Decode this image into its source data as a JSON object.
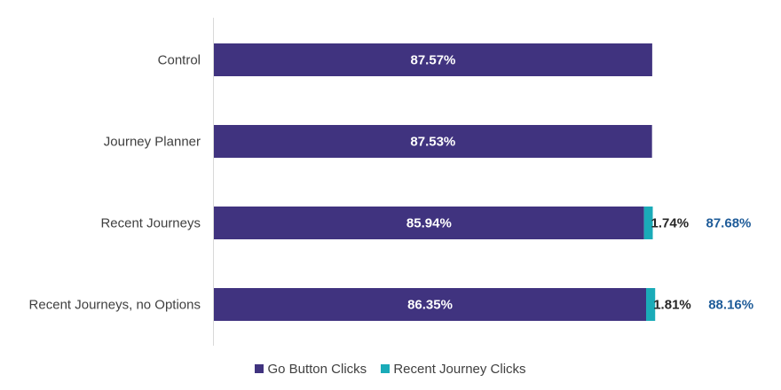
{
  "chart_data": {
    "type": "bar",
    "orientation": "horizontal",
    "stacked": true,
    "categories": [
      "Control",
      "Journey Planner",
      "Recent Journeys",
      "Recent Journeys, no Options"
    ],
    "series": [
      {
        "name": "Go Button Clicks",
        "color": "#40337f",
        "values": [
          87.57,
          87.53,
          85.94,
          86.35
        ],
        "labels": [
          "87.57%",
          "87.53%",
          "85.94%",
          "86.35%"
        ]
      },
      {
        "name": "Recent Journey Clicks",
        "color": "#1aabb8",
        "values": [
          null,
          null,
          1.74,
          1.81
        ],
        "labels": [
          "",
          "",
          "1.74%",
          "1.81%"
        ]
      }
    ],
    "totals": [
      "",
      "",
      "87.68%",
      "88.16%"
    ],
    "total_color": "#1f5c99",
    "xlim": [
      0,
      100
    ],
    "grid": false,
    "legend_position": "bottom"
  }
}
